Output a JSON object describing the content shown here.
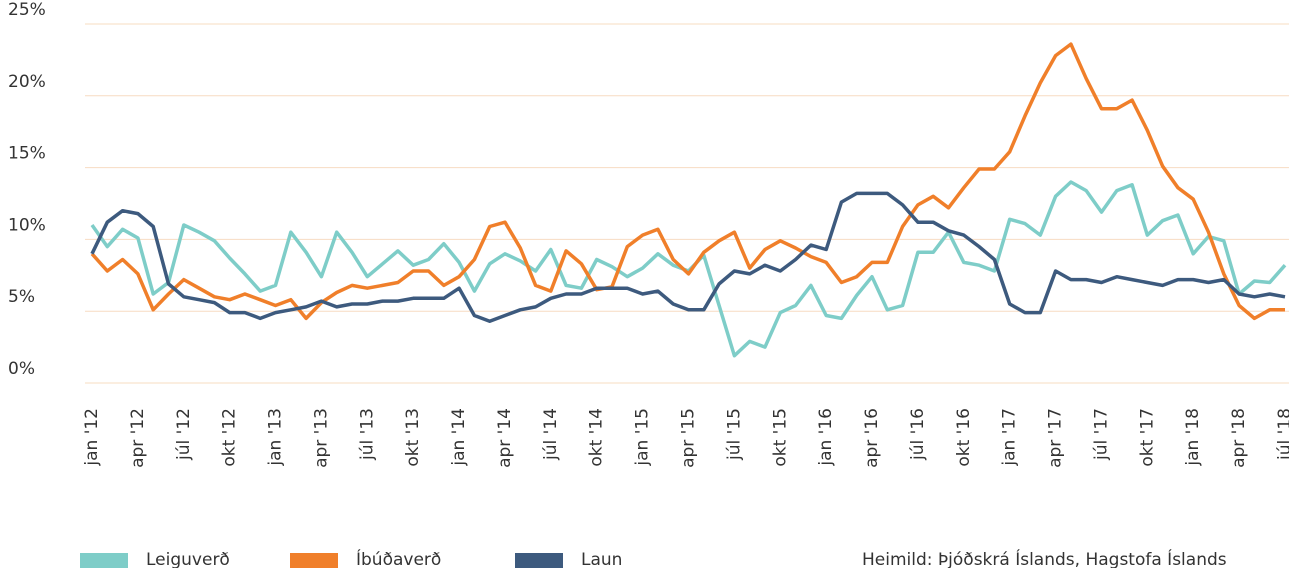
{
  "chart_data": {
    "type": "line",
    "categories": [
      "jan '12",
      null,
      null,
      "apr '12",
      null,
      null,
      "júl '12",
      null,
      null,
      "okt '12",
      null,
      null,
      "jan '13",
      null,
      null,
      "apr '13",
      null,
      null,
      "júl '13",
      null,
      null,
      "okt '13",
      null,
      null,
      "jan '14",
      null,
      null,
      "apr '14",
      null,
      null,
      "júl '14",
      null,
      null,
      "okt '14",
      null,
      null,
      "jan '15",
      null,
      null,
      "apr '15",
      null,
      null,
      "júl '15",
      null,
      null,
      "okt '15",
      null,
      null,
      "jan '16",
      null,
      null,
      "apr '16",
      null,
      null,
      "júl '16",
      null,
      null,
      "okt '16",
      null,
      null,
      "jan '17",
      null,
      null,
      "apr '17",
      null,
      null,
      "júl '17",
      null,
      null,
      "okt '17",
      null,
      null,
      "jan '18",
      null,
      null,
      "apr '18",
      null,
      null,
      "júl '18"
    ],
    "series": [
      {
        "name": "Leiguverð",
        "color": "#7ecdc8",
        "values": [
          11.0,
          9.5,
          10.7,
          10.1,
          6.2,
          7.0,
          11.0,
          10.5,
          9.9,
          8.7,
          7.6,
          6.4,
          6.8,
          10.5,
          9.1,
          7.4,
          10.5,
          9.1,
          7.4,
          8.3,
          9.2,
          8.2,
          8.6,
          9.7,
          8.4,
          6.4,
          8.3,
          9.0,
          8.5,
          7.8,
          9.3,
          6.8,
          6.6,
          8.6,
          8.1,
          7.4,
          8.0,
          9.0,
          8.2,
          7.8,
          8.9,
          5.4,
          1.9,
          2.9,
          2.5,
          4.9,
          5.4,
          6.8,
          4.7,
          4.5,
          6.1,
          7.4,
          5.1,
          5.4,
          9.1,
          9.1,
          10.5,
          8.4,
          8.2,
          7.8,
          11.4,
          11.1,
          10.3,
          13.0,
          14.0,
          13.4,
          11.9,
          13.4,
          13.8,
          10.3,
          11.3,
          11.7,
          9.0,
          10.2,
          9.9,
          6.2,
          7.1,
          7.0,
          8.2
        ]
      },
      {
        "name": "Íbúðaverð",
        "color": "#f07f2a",
        "values": [
          9.0,
          7.8,
          8.6,
          7.6,
          5.1,
          6.2,
          7.2,
          6.6,
          6.0,
          5.8,
          6.2,
          5.8,
          5.4,
          5.8,
          4.5,
          5.6,
          6.3,
          6.8,
          6.6,
          6.8,
          7.0,
          7.8,
          7.8,
          6.8,
          7.4,
          8.6,
          10.9,
          11.2,
          9.4,
          6.8,
          6.4,
          9.2,
          8.3,
          6.5,
          6.7,
          9.5,
          10.3,
          10.7,
          8.6,
          7.6,
          9.1,
          9.9,
          10.5,
          8.0,
          9.3,
          9.9,
          9.4,
          8.8,
          8.4,
          7.0,
          7.4,
          8.4,
          8.4,
          10.9,
          12.4,
          13.0,
          12.2,
          13.6,
          14.9,
          14.9,
          16.1,
          18.6,
          20.9,
          22.8,
          23.6,
          21.2,
          19.1,
          19.1,
          19.7,
          17.6,
          15.1,
          13.6,
          12.8,
          10.5,
          7.6,
          5.4,
          4.5,
          5.1,
          5.1
        ]
      },
      {
        "name": "Laun",
        "color": "#3d5a7e",
        "values": [
          9.0,
          11.2,
          12.0,
          11.8,
          10.9,
          6.9,
          6.0,
          5.8,
          5.6,
          4.9,
          4.9,
          4.5,
          4.9,
          5.1,
          5.3,
          5.7,
          5.3,
          5.5,
          5.5,
          5.7,
          5.7,
          5.9,
          5.9,
          5.9,
          6.6,
          4.7,
          4.3,
          4.7,
          5.1,
          5.3,
          5.9,
          6.2,
          6.2,
          6.6,
          6.6,
          6.6,
          6.2,
          6.4,
          5.5,
          5.1,
          5.1,
          6.9,
          7.8,
          7.6,
          8.2,
          7.8,
          8.6,
          9.6,
          9.3,
          12.6,
          13.2,
          13.2,
          13.2,
          12.4,
          11.2,
          11.2,
          10.6,
          10.3,
          9.5,
          8.6,
          5.5,
          4.9,
          4.9,
          7.8,
          7.2,
          7.2,
          7.0,
          7.4,
          7.2,
          7.0,
          6.8,
          7.2,
          7.2,
          7.0,
          7.2,
          6.2,
          6.0,
          6.2,
          6.0
        ]
      }
    ],
    "ylim": [
      0,
      25
    ],
    "yticks": [
      {
        "value": 0,
        "label": "0%"
      },
      {
        "value": 5,
        "label": "5%"
      },
      {
        "value": 10,
        "label": "10%"
      },
      {
        "value": 15,
        "label": "15%"
      },
      {
        "value": 20,
        "label": "20%"
      },
      {
        "value": 25,
        "label": "25%"
      }
    ],
    "grid": true,
    "source": "Heimild: Þjóðskrá Íslands, Hagstofa Íslands"
  }
}
